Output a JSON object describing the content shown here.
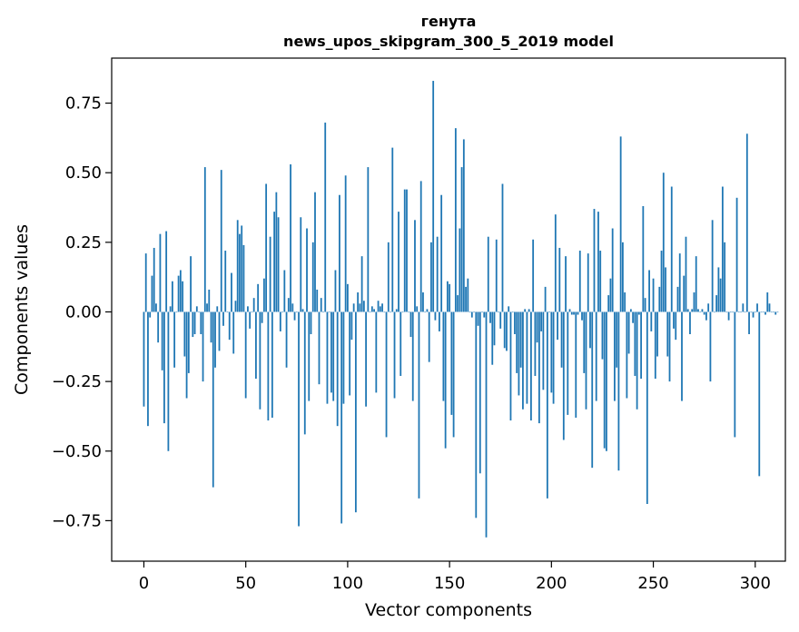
{
  "chart_data": {
    "type": "bar",
    "title": "генута",
    "subtitle": "news_upos_skipgram_300_5_2019 model",
    "xlabel": "Vector components",
    "ylabel": "Components values",
    "xlim": [
      -15.8,
      314.8
    ],
    "ylim": [
      -0.8955,
      0.9117
    ],
    "xticks": [
      0,
      50,
      100,
      150,
      200,
      250,
      300
    ],
    "yticks": [
      -0.75,
      -0.5,
      -0.25,
      0.0,
      0.25,
      0.5,
      0.75
    ],
    "ytick_labels": [
      "−0.75",
      "−0.50",
      "−0.25",
      "0.00",
      "0.25",
      "0.50",
      "0.75"
    ],
    "grid": false,
    "bar_color": "#1f77b4",
    "series": [
      {
        "values": [
          -0.34,
          0.21,
          -0.41,
          -0.02,
          0.13,
          0.23,
          0.03,
          -0.11,
          0.28,
          -0.21,
          -0.4,
          0.29,
          -0.5,
          0.02,
          0.11,
          -0.2,
          0.0,
          0.13,
          0.15,
          0.11,
          -0.16,
          -0.31,
          -0.22,
          0.2,
          -0.09,
          -0.08,
          0.02,
          0.0,
          -0.08,
          -0.25,
          0.52,
          0.03,
          0.08,
          -0.11,
          -0.63,
          -0.2,
          0.02,
          -0.14,
          0.51,
          -0.05,
          0.22,
          0.0,
          -0.1,
          0.14,
          -0.15,
          0.04,
          0.33,
          0.28,
          0.31,
          0.24,
          -0.31,
          0.02,
          -0.06,
          0.0,
          0.05,
          -0.24,
          0.1,
          -0.35,
          -0.04,
          0.12,
          0.46,
          -0.39,
          0.27,
          -0.38,
          0.36,
          0.43,
          0.34,
          -0.07,
          0.0,
          0.15,
          -0.2,
          0.05,
          0.53,
          0.03,
          -0.03,
          0.0,
          -0.77,
          0.34,
          0.01,
          -0.44,
          0.3,
          -0.32,
          -0.08,
          0.25,
          0.43,
          0.08,
          -0.26,
          0.05,
          0.0,
          0.68,
          -0.33,
          0.0,
          -0.29,
          -0.32,
          0.15,
          -0.41,
          0.42,
          -0.76,
          -0.33,
          0.49,
          0.1,
          -0.3,
          -0.1,
          0.03,
          -0.72,
          0.07,
          0.03,
          0.2,
          0.04,
          -0.34,
          0.52,
          0.0,
          0.02,
          0.01,
          -0.29,
          0.04,
          0.02,
          0.03,
          0.0,
          -0.45,
          0.25,
          0.0,
          0.59,
          -0.31,
          0.01,
          0.36,
          -0.23,
          0.0,
          0.44,
          0.44,
          0.0,
          -0.09,
          -0.32,
          0.33,
          0.02,
          -0.67,
          0.47,
          0.07,
          0.0,
          0.01,
          -0.18,
          0.25,
          0.83,
          -0.03,
          0.27,
          -0.07,
          0.42,
          -0.32,
          -0.49,
          0.11,
          0.1,
          -0.37,
          -0.45,
          0.66,
          0.06,
          0.3,
          0.52,
          0.62,
          0.09,
          0.12,
          0.0,
          -0.02,
          0.0,
          -0.74,
          -0.05,
          -0.58,
          0.0,
          -0.02,
          -0.81,
          0.27,
          -0.04,
          -0.19,
          -0.12,
          0.26,
          0.0,
          -0.06,
          0.46,
          -0.13,
          -0.14,
          0.02,
          -0.39,
          0.0,
          -0.08,
          -0.22,
          -0.3,
          -0.2,
          -0.35,
          0.01,
          -0.33,
          0.01,
          -0.39,
          0.26,
          -0.23,
          -0.11,
          -0.4,
          -0.07,
          -0.28,
          0.09,
          -0.67,
          0.0,
          -0.29,
          -0.33,
          0.35,
          -0.1,
          0.23,
          -0.2,
          -0.46,
          0.2,
          -0.37,
          0.01,
          -0.01,
          -0.01,
          -0.38,
          -0.01,
          0.22,
          -0.03,
          -0.22,
          -0.35,
          0.21,
          -0.13,
          -0.56,
          0.37,
          -0.32,
          0.36,
          0.22,
          -0.17,
          -0.49,
          -0.5,
          0.06,
          0.12,
          0.3,
          -0.32,
          -0.2,
          -0.57,
          0.63,
          0.25,
          0.07,
          -0.31,
          -0.15,
          0.01,
          -0.04,
          -0.23,
          -0.35,
          -0.01,
          -0.24,
          0.38,
          0.05,
          -0.69,
          0.15,
          -0.07,
          0.12,
          -0.24,
          -0.16,
          0.09,
          0.22,
          0.5,
          0.16,
          -0.16,
          -0.25,
          0.45,
          -0.06,
          -0.1,
          0.09,
          0.21,
          -0.32,
          0.13,
          0.27,
          0.01,
          -0.08,
          0.01,
          0.07,
          0.2,
          0.01,
          0.0,
          0.01,
          -0.01,
          -0.03,
          0.03,
          -0.25,
          0.33,
          0.0,
          0.06,
          0.16,
          0.12,
          0.45,
          0.25,
          0.0,
          -0.03,
          0.0,
          0.0,
          -0.45,
          0.41,
          0.0,
          0.0,
          0.03,
          0.0,
          0.64,
          -0.08,
          0.0,
          -0.02,
          0.0,
          0.03,
          -0.59,
          0.0,
          0.0,
          -0.01,
          0.07,
          0.03,
          0.0,
          0.0,
          -0.01,
          0.0
        ]
      }
    ]
  }
}
